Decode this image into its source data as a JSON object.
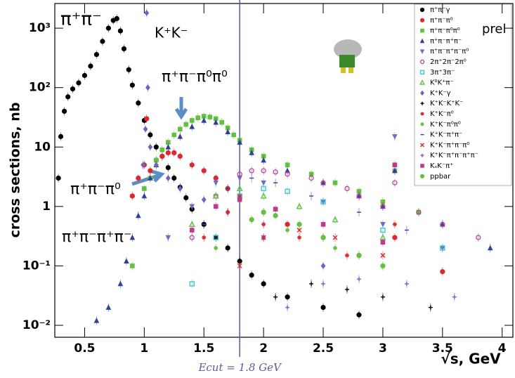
{
  "chart_data": {
    "type": "scatter",
    "log_y": true,
    "y_label": "cross sections, nb",
    "x_label": "√s, GeV",
    "xlim": [
      0.25,
      4.09
    ],
    "ylim": [
      0.0063,
      2600
    ],
    "xticks": [
      0.5,
      1,
      1.5,
      2,
      2.5,
      3,
      3.5,
      4
    ],
    "yticks": [
      {
        "value": 0.01,
        "label": "10⁻²"
      },
      {
        "value": 0.1,
        "label": "10⁻¹"
      },
      1,
      10,
      {
        "value": 100,
        "label": "10²"
      },
      {
        "value": 1000,
        "label": "10³"
      }
    ],
    "vline": {
      "x": 1.8,
      "label": "Ecut = 1.8 GeV",
      "color": "#5a5aa8"
    },
    "annotations": [
      "π⁺π⁻",
      "K⁺K⁻",
      "π⁺π⁻π⁰π⁰",
      "π⁺π⁻π⁰",
      "π⁺π⁻π⁺π⁻",
      "prel"
    ],
    "legend_position": "upper right",
    "series": [
      {
        "name": "π⁺π⁻γ",
        "color": "#000000",
        "marker": "circle",
        "x": [
          0.28,
          0.3,
          0.33,
          0.36,
          0.4,
          0.45,
          0.5,
          0.55,
          0.6,
          0.65,
          0.7,
          0.74,
          0.77,
          0.8,
          0.83,
          0.87,
          0.9,
          0.95,
          1.0,
          1.05,
          1.1,
          1.15,
          1.2,
          1.25,
          1.3,
          1.35,
          1.4,
          1.5,
          1.6,
          1.7,
          1.8,
          1.9,
          2.0,
          2.2,
          2.5,
          2.8
        ],
        "values": [
          3,
          15,
          40,
          70,
          95,
          120,
          160,
          230,
          360,
          600,
          1000,
          1350,
          1450,
          900,
          450,
          200,
          110,
          55,
          28,
          16,
          10,
          7,
          4.5,
          3,
          2.1,
          1.4,
          0.9,
          0.5,
          0.3,
          0.2,
          0.12,
          0.07,
          0.05,
          0.03,
          0.02,
          0.015
        ]
      },
      {
        "name": "π⁺π⁻π⁰",
        "color": "#e8232a",
        "marker": "circle",
        "x": [
          0.9,
          0.95,
          1.0,
          1.02,
          1.05,
          1.1,
          1.15,
          1.2,
          1.25,
          1.3,
          1.4,
          1.5,
          1.6,
          1.7,
          1.8,
          2.0,
          2.2,
          2.5,
          2.8,
          3.1,
          3.5
        ],
        "values": [
          1.5,
          3,
          5,
          30,
          4,
          6,
          7,
          8,
          8,
          7,
          5,
          4,
          3,
          2,
          1.5,
          0.8,
          0.5,
          0.3,
          0.15,
          0.3,
          0.08
        ]
      },
      {
        "name": "π⁺π⁻π⁰π⁰",
        "color": "#5fc43a",
        "marker": "square",
        "x": [
          0.9,
          1.0,
          1.05,
          1.1,
          1.15,
          1.2,
          1.25,
          1.3,
          1.35,
          1.4,
          1.45,
          1.5,
          1.55,
          1.6,
          1.65,
          1.7,
          1.75,
          1.8,
          1.9,
          2.0,
          2.2,
          2.4,
          2.6,
          2.8,
          3.0,
          3.1,
          3.3
        ],
        "values": [
          0.1,
          2,
          3,
          6,
          9,
          12,
          16,
          20,
          24,
          28,
          31,
          33,
          32,
          30,
          26,
          21,
          16,
          13,
          9,
          7,
          5,
          3.5,
          2.5,
          1.8,
          1.2,
          4,
          0.8
        ]
      },
      {
        "name": "π⁺π⁻π⁺π⁻",
        "color": "#2e3fa0",
        "marker": "triangle",
        "x": [
          0.6,
          0.7,
          0.8,
          0.85,
          0.9,
          0.95,
          1.0,
          1.05,
          1.1,
          1.2,
          1.3,
          1.4,
          1.5,
          1.6,
          1.7,
          1.8,
          1.9,
          2.0,
          2.2,
          2.5,
          2.8,
          3.0,
          3.1,
          3.5,
          3.9
        ],
        "values": [
          0.012,
          0.02,
          0.05,
          0.12,
          0.3,
          0.7,
          1.5,
          3,
          5,
          10,
          15,
          22,
          28,
          26,
          18,
          12,
          8,
          6,
          4,
          2.5,
          1.5,
          1,
          4,
          0.5,
          0.2
        ]
      },
      {
        "name": "π⁺π⁻π⁺π⁻π⁰",
        "color": "#6670c8",
        "marker": "triangle-down",
        "x": [
          1.2,
          1.4,
          1.6,
          1.8,
          2.0,
          2.5,
          3.0,
          3.1,
          3.5
        ],
        "values": [
          0.3,
          1,
          2.5,
          3,
          2.5,
          1.2,
          0.5,
          15,
          0.2
        ]
      },
      {
        "name": "2π⁺2π⁻2π⁰",
        "color": "#c0388f",
        "marker": "open-circle",
        "x": [
          1.4,
          1.6,
          1.8,
          1.9,
          2.0,
          2.1,
          2.2,
          2.4,
          2.5,
          2.7,
          2.8,
          3.0,
          3.1,
          3.3,
          3.5,
          3.8
        ],
        "values": [
          0.3,
          1.5,
          3.5,
          4,
          4,
          3.8,
          3.5,
          3,
          2.5,
          2,
          1.5,
          1,
          2.5,
          0.8,
          0.5,
          0.3
        ]
      },
      {
        "name": "3π⁺3π⁻",
        "color": "#3cc6d8",
        "marker": "open-square",
        "x": [
          1.4,
          1.6,
          1.8,
          2.0,
          2.2,
          2.5,
          3.0,
          3.5
        ],
        "values": [
          0.05,
          0.3,
          1.5,
          2,
          1.8,
          1.2,
          0.4,
          0.2
        ]
      },
      {
        "name": "K⁰K⁺π⁻",
        "color": "#5fc43a",
        "marker": "open-triangle",
        "x": [
          1.4,
          1.6,
          1.8,
          2.0,
          2.3,
          2.6,
          3.0
        ],
        "values": [
          0.5,
          1.5,
          2,
          1.5,
          1,
          0.6,
          0.3
        ]
      },
      {
        "name": "K⁺K⁻γ",
        "color": "#7a5cc8",
        "marker": "diamond",
        "x": [
          0.99,
          1.01,
          1.02,
          1.03,
          1.05,
          1.1,
          1.2,
          1.3,
          1.5,
          1.7,
          2.0,
          2.5
        ],
        "values": [
          5,
          20,
          1800,
          100,
          10,
          5,
          3,
          2,
          1.3,
          0.8,
          0.3,
          0.1
        ]
      },
      {
        "name": "K⁺K⁻K⁺K⁻",
        "color": "#000000",
        "marker": "cross",
        "x": [
          2.1,
          2.4,
          2.7,
          3.0,
          3.4
        ],
        "values": [
          0.03,
          0.05,
          0.04,
          0.03,
          0.02
        ]
      },
      {
        "name": "K⁺K⁻π⁰",
        "color": "#e8232a",
        "marker": "star",
        "x": [
          1.5,
          1.7,
          2.0,
          2.3,
          2.7,
          3.1
        ],
        "values": [
          0.3,
          0.8,
          0.5,
          0.3,
          0.15,
          0.5
        ]
      },
      {
        "name": "K⁺K⁻π⁰π⁰",
        "color": "#5fc43a",
        "marker": "star",
        "x": [
          1.6,
          1.9,
          2.2,
          2.6,
          3.0
        ],
        "values": [
          0.2,
          0.6,
          0.4,
          0.2,
          0.1
        ]
      },
      {
        "name": "K⁺K⁻π⁺π⁻",
        "color": "#2e3fa0",
        "marker": "dash",
        "x": [
          1.5,
          1.7,
          1.9,
          2.1,
          2.4,
          2.8,
          3.2
        ],
        "values": [
          0.5,
          2,
          3,
          2.5,
          1.5,
          0.8,
          0.4
        ]
      },
      {
        "name": "K⁺K⁻π⁺π⁻π⁰",
        "color": "#e8232a",
        "marker": "x",
        "x": [
          1.8,
          2.0,
          2.3,
          2.6,
          3.0
        ],
        "values": [
          0.1,
          0.3,
          0.4,
          0.3,
          0.15
        ]
      },
      {
        "name": "K⁺K⁻π⁺π⁻π⁺π⁻",
        "color": "#7a5cc8",
        "marker": "plus",
        "x": [
          2.2,
          2.5,
          2.8,
          3.2,
          3.6
        ],
        "values": [
          0.02,
          0.05,
          0.06,
          0.05,
          0.03
        ]
      },
      {
        "name": "KₛK⁻π⁺",
        "color": "#c0388f",
        "marker": "square",
        "x": [
          1.4,
          1.6,
          1.8,
          2.1,
          2.5,
          3.0,
          3.1
        ],
        "values": [
          0.4,
          1,
          1.3,
          0.9,
          0.5,
          0.25,
          5
        ]
      },
      {
        "name": "ppbar",
        "color": "#5fc43a",
        "marker": "circle",
        "x": [
          1.9,
          2.0,
          2.1,
          2.3,
          2.5,
          2.8,
          3.0
        ],
        "values": [
          0.6,
          0.8,
          0.7,
          0.5,
          0.3,
          0.15,
          0.1
        ]
      }
    ]
  }
}
